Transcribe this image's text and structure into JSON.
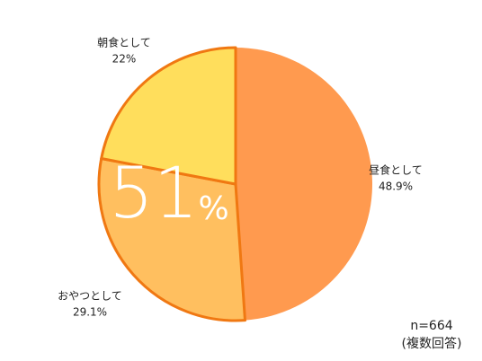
{
  "chart_data": {
    "type": "pie",
    "categories": [
      "昼食として",
      "おやつとして",
      "朝食として"
    ],
    "values": [
      48.9,
      29.1,
      22
    ],
    "value_labels": [
      "48.9%",
      "29.1%",
      "22%"
    ],
    "colors": [
      "#ff9a4f",
      "#ffbf5f",
      "#ffde5c"
    ],
    "outlined": [
      false,
      true,
      true
    ],
    "outline_color": "#f07812",
    "highlight": {
      "value": 51,
      "unit": "%"
    },
    "note": [
      "n=664",
      "(複数回答)"
    ]
  }
}
